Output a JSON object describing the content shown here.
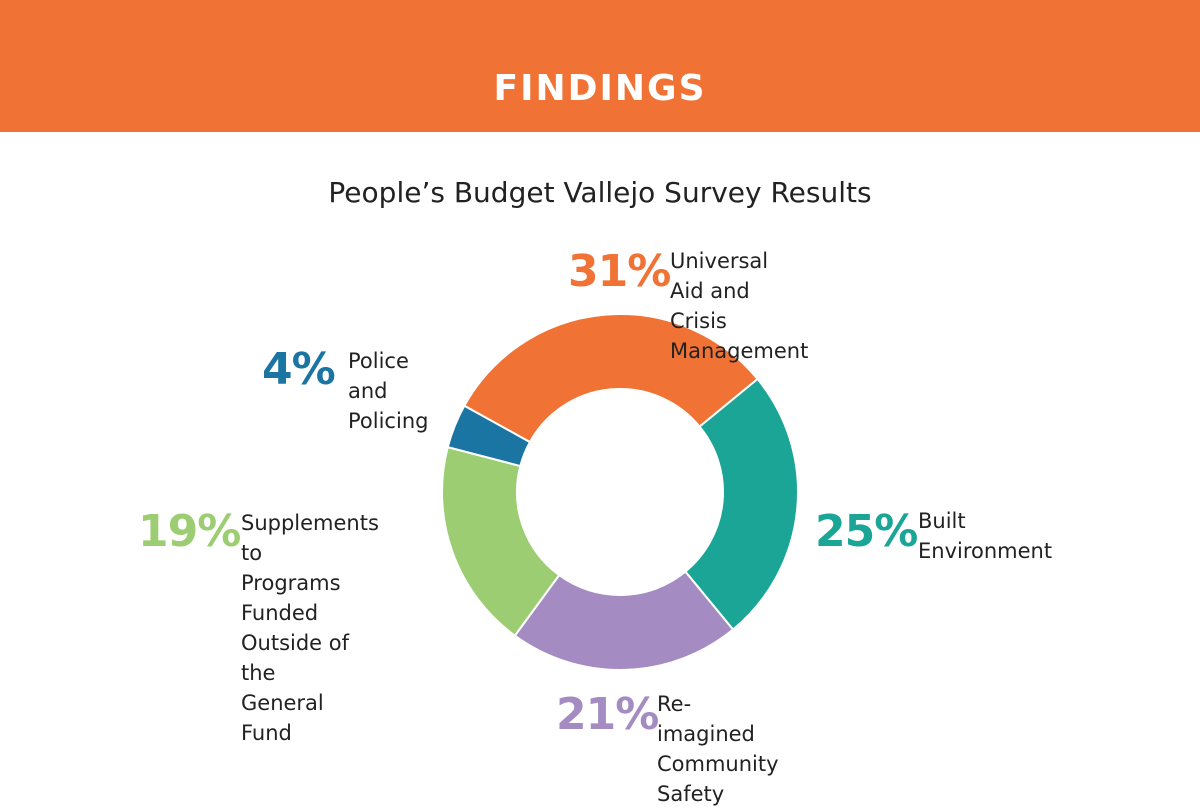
{
  "header": {
    "title": "FINDINGS"
  },
  "chart_data": {
    "type": "pie",
    "title": "People’s Budget Vallejo Survey Results",
    "donut": true,
    "categories": [
      "Universal Aid and\nCrisis Management",
      "Built\nEnvironment",
      "Re-imagined\nCommunity Safety",
      "Supplements to\nPrograms Funded\nOutside of the\nGeneral Fund",
      "Police and\nPolicing"
    ],
    "values": [
      31,
      25,
      21,
      19,
      4
    ],
    "value_labels": [
      "31%",
      "25%",
      "21%",
      "19%",
      "4%"
    ],
    "colors": [
      "#f07335",
      "#1aa596",
      "#a48cc2",
      "#9ccd72",
      "#1a75a2"
    ]
  }
}
